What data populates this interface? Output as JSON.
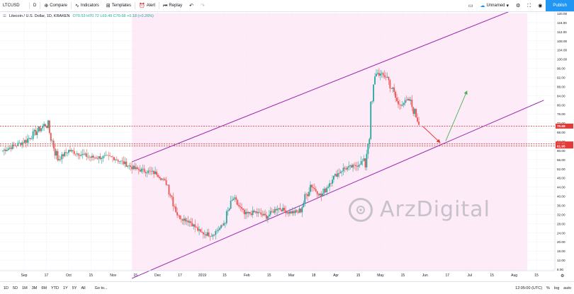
{
  "toolbar": {
    "symbol": "LTCUSD",
    "interval": "D",
    "compare": "Compare",
    "indicators": "Indicators",
    "templates": "Templates",
    "alert": "Alert",
    "replay": "Replay",
    "layout_name": "Unnamed",
    "publish": "Publish"
  },
  "legend": {
    "title": "Litecoin / U.S. Dollar, 1D, KRAKEN",
    "ohlc": "O70.53 H70.72 L69.49 C70.68 +0.18 (+0.26%)"
  },
  "price_labels": {
    "current": "70.68",
    "level_upper": "62.86",
    "level_lower": "61.95"
  },
  "chart_data": {
    "type": "candlestick",
    "symbol": "LTCUSD",
    "y_ticks": [
      "120.00",
      "116.00",
      "112.00",
      "108.00",
      "104.00",
      "100.00",
      "96.00",
      "92.00",
      "88.00",
      "84.00",
      "80.00",
      "76.00",
      "72.00",
      "68.00",
      "64.00",
      "60.00",
      "56.00",
      "52.00",
      "48.00",
      "44.00",
      "40.00",
      "36.00",
      "32.00",
      "28.00",
      "24.00",
      "20.00",
      "16.00",
      "12.00",
      "8.00"
    ],
    "x_ticks": [
      "Sep",
      "17",
      "Oct",
      "15",
      "Nov",
      "15",
      "Dec",
      "17",
      "2019",
      "15",
      "Feb",
      "15",
      "Mar",
      "18",
      "Apr",
      "15",
      "May",
      "15",
      "Jun",
      "17",
      "Jul",
      "15",
      "Aug",
      "15"
    ],
    "ylim": [
      8,
      120
    ],
    "close_path": [
      [
        0,
        60
      ],
      [
        4,
        64
      ],
      [
        8,
        72
      ],
      [
        10,
        56
      ],
      [
        12,
        60
      ],
      [
        16,
        57
      ],
      [
        20,
        57
      ],
      [
        24,
        52
      ],
      [
        28,
        50
      ],
      [
        30,
        45
      ],
      [
        32,
        31
      ],
      [
        34,
        29
      ],
      [
        36,
        24
      ],
      [
        38,
        23
      ],
      [
        40,
        27
      ],
      [
        42,
        39
      ],
      [
        44,
        32
      ],
      [
        46,
        33
      ],
      [
        48,
        31
      ],
      [
        50,
        35
      ],
      [
        52,
        33
      ],
      [
        54,
        33
      ],
      [
        56,
        45
      ],
      [
        58,
        40
      ],
      [
        60,
        48
      ],
      [
        62,
        52
      ],
      [
        64,
        53
      ],
      [
        66,
        56
      ],
      [
        68,
        94
      ],
      [
        70,
        92
      ],
      [
        72,
        80
      ],
      [
        74,
        82
      ],
      [
        76,
        71
      ]
    ],
    "channel": {
      "lower_start": [
        23.5,
        4
      ],
      "lower_end": [
        98.5,
        82
      ],
      "upper_start": [
        23.5,
        55
      ],
      "upper_end": [
        95.5,
        124
      ]
    },
    "horizontal_levels": [
      70.68,
      62.86,
      61.95
    ],
    "grid": true
  },
  "bottom": {
    "ranges": [
      "1D",
      "5D",
      "1M",
      "3M",
      "6M",
      "YTD",
      "1Y",
      "5Y",
      "All"
    ],
    "goto": "Go to...",
    "time": "12:05:00 (UTC)",
    "pct": "%",
    "log": "log",
    "auto": "auto"
  },
  "watermark": "ArzDigital"
}
